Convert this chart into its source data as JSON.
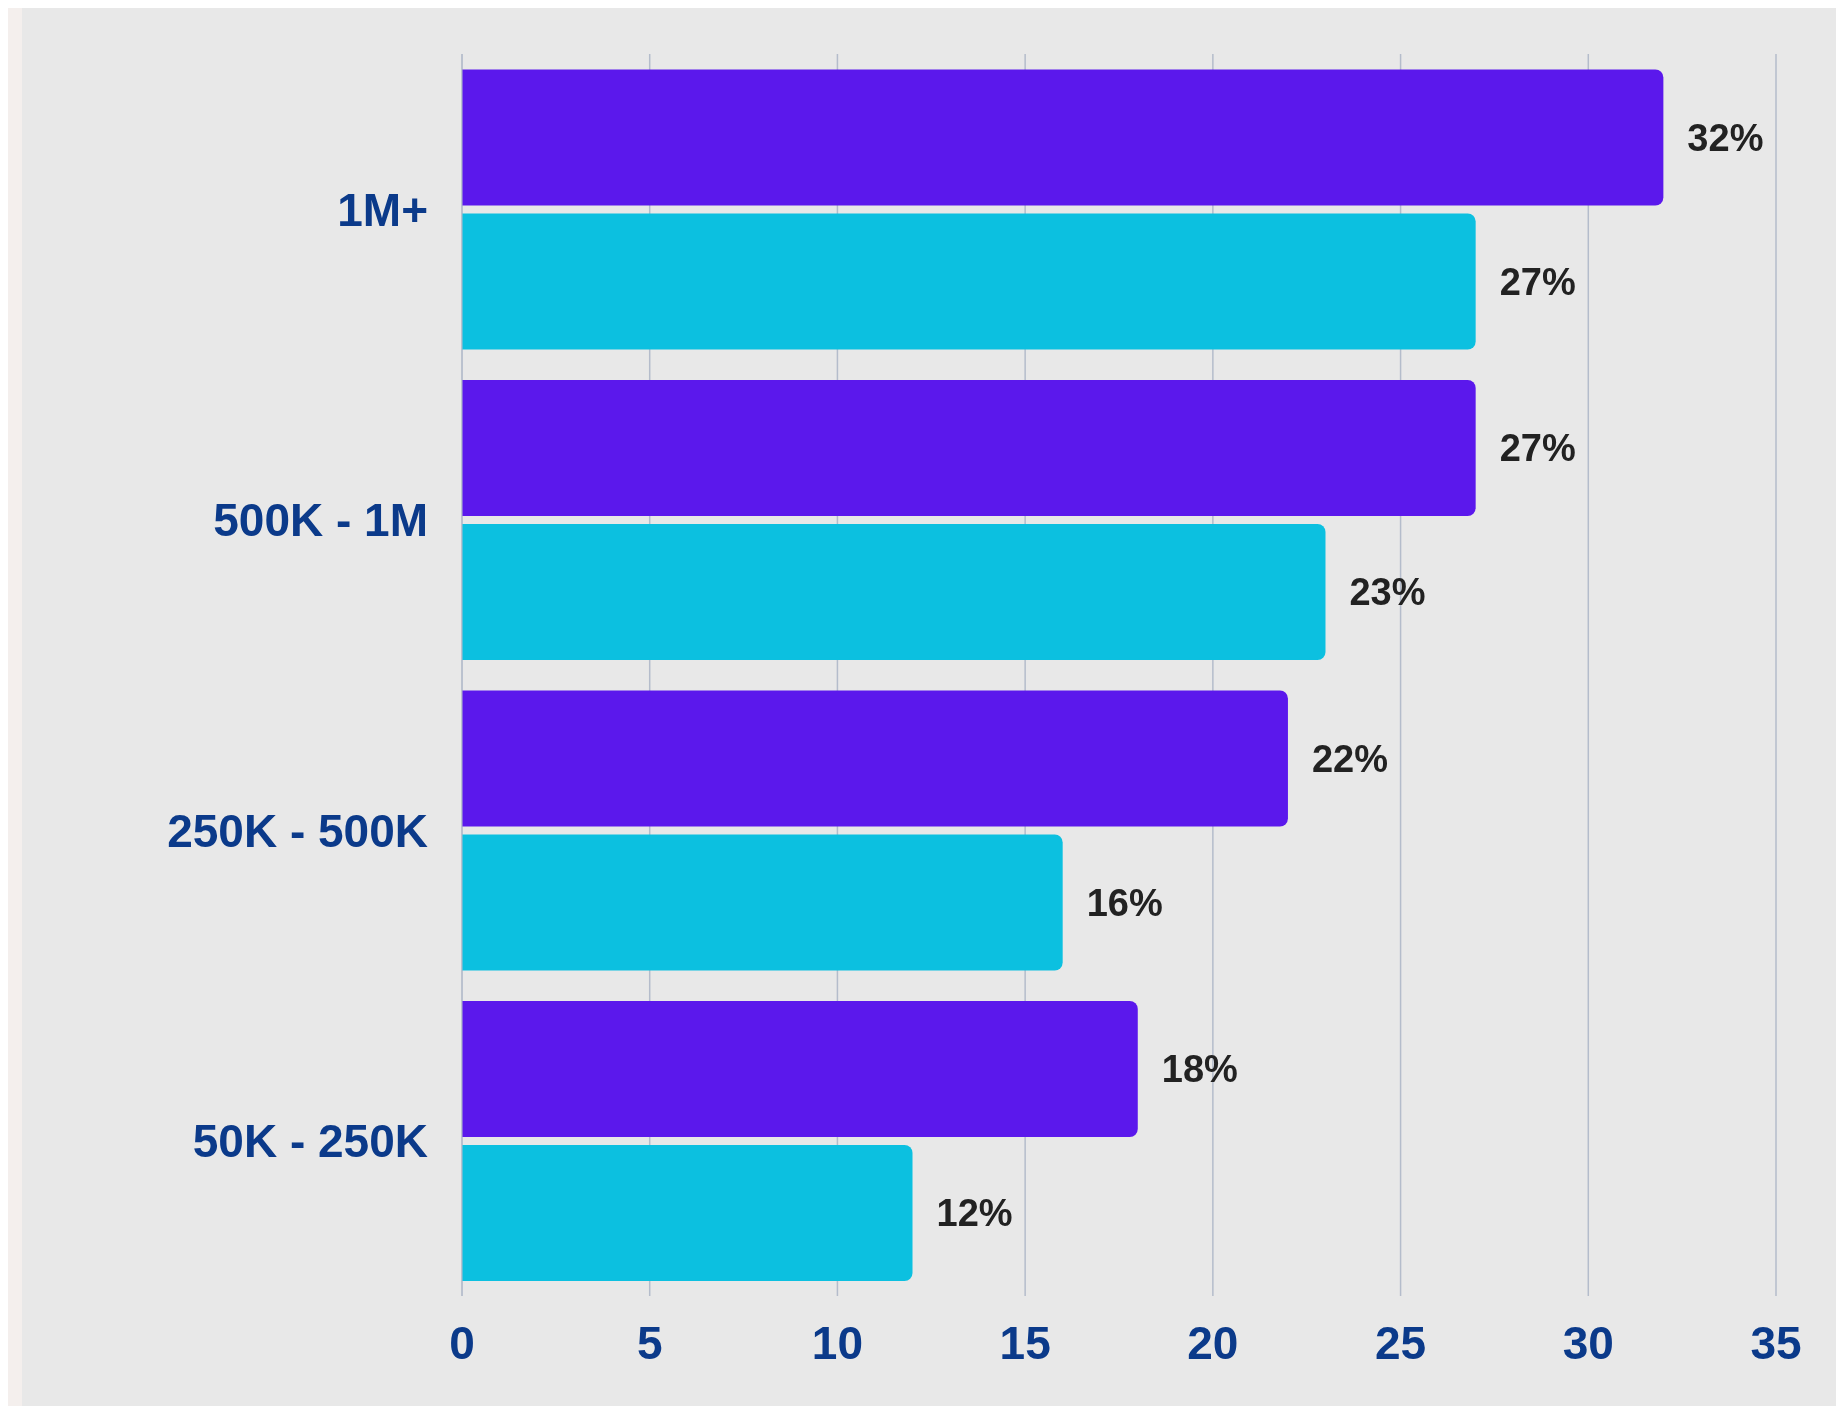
{
  "chart_data": {
    "type": "bar",
    "orientation": "horizontal",
    "categories": [
      "1M+",
      "500K - 1M",
      "250K - 500K",
      "50K - 250K"
    ],
    "series": [
      {
        "color": "#5b18ec",
        "values": [
          32,
          27,
          22,
          18
        ],
        "value_labels": [
          "32%",
          "27%",
          "22%",
          "18%"
        ]
      },
      {
        "color": "#0cc0e0",
        "values": [
          27,
          23,
          16,
          12
        ],
        "value_labels": [
          "27%",
          "23%",
          "16%",
          "12%"
        ]
      }
    ],
    "xlim": [
      0,
      35
    ],
    "xticks": [
      0,
      5,
      10,
      15,
      20,
      25,
      30,
      35
    ],
    "grid": "x"
  }
}
